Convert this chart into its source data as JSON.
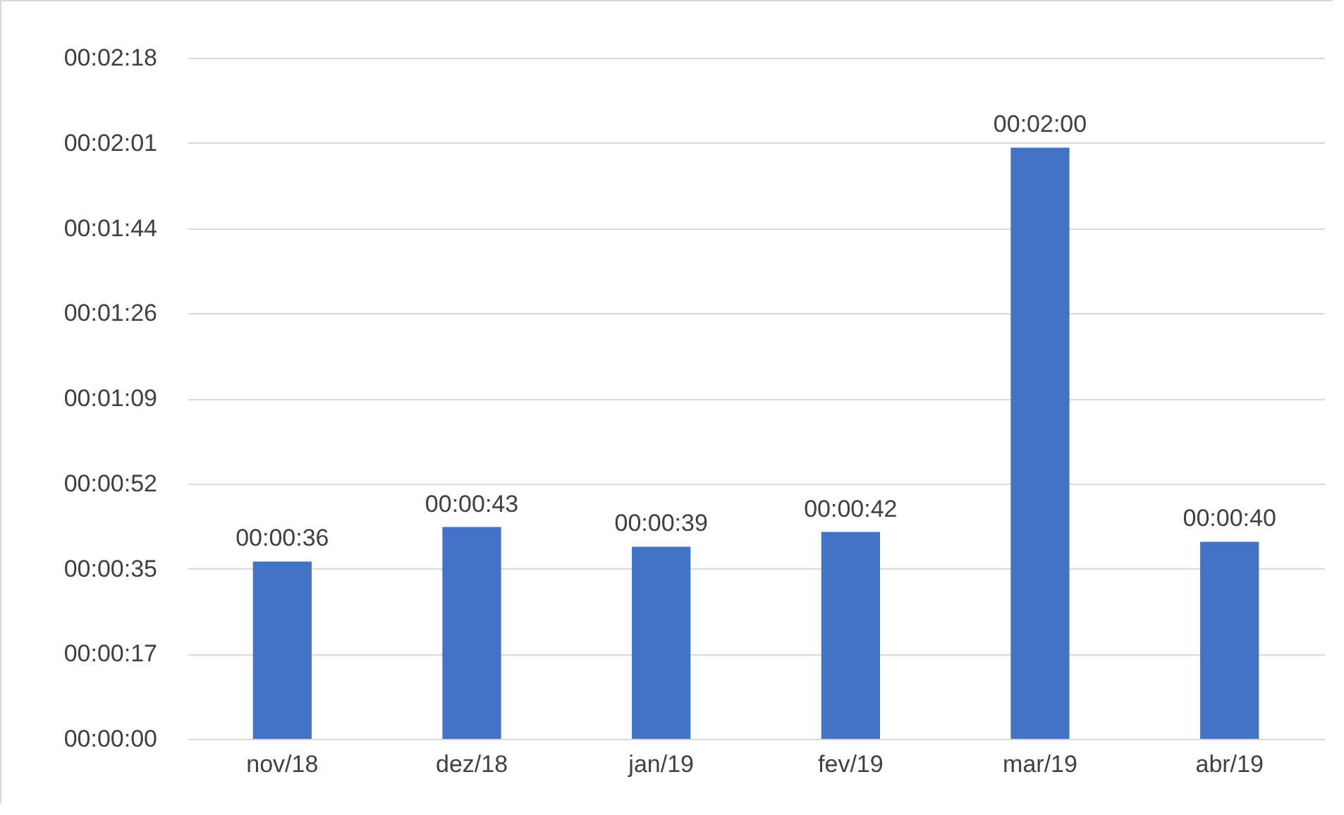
{
  "chart_data": {
    "type": "bar",
    "categories": [
      "nov/18",
      "dez/18",
      "jan/19",
      "fev/19",
      "mar/19",
      "abr/19"
    ],
    "values": [
      36,
      43,
      39,
      42,
      120,
      40
    ],
    "value_labels": [
      "00:00:36",
      "00:00:43",
      "00:00:39",
      "00:00:42",
      "00:02:00",
      "00:00:40"
    ],
    "color": "#4472c4",
    "ylim": [
      0,
      138.24
    ],
    "yticks": [
      {
        "value": 0,
        "label": "00:00:00"
      },
      {
        "value": 17.28,
        "label": "00:00:17"
      },
      {
        "value": 34.56,
        "label": "00:00:35"
      },
      {
        "value": 51.84,
        "label": "00:00:52"
      },
      {
        "value": 69.12,
        "label": "00:01:09"
      },
      {
        "value": 86.4,
        "label": "00:01:26"
      },
      {
        "value": 103.68,
        "label": "00:01:44"
      },
      {
        "value": 120.96,
        "label": "00:02:01"
      },
      {
        "value": 138.24,
        "label": "00:02:18"
      }
    ],
    "grid": "y"
  }
}
